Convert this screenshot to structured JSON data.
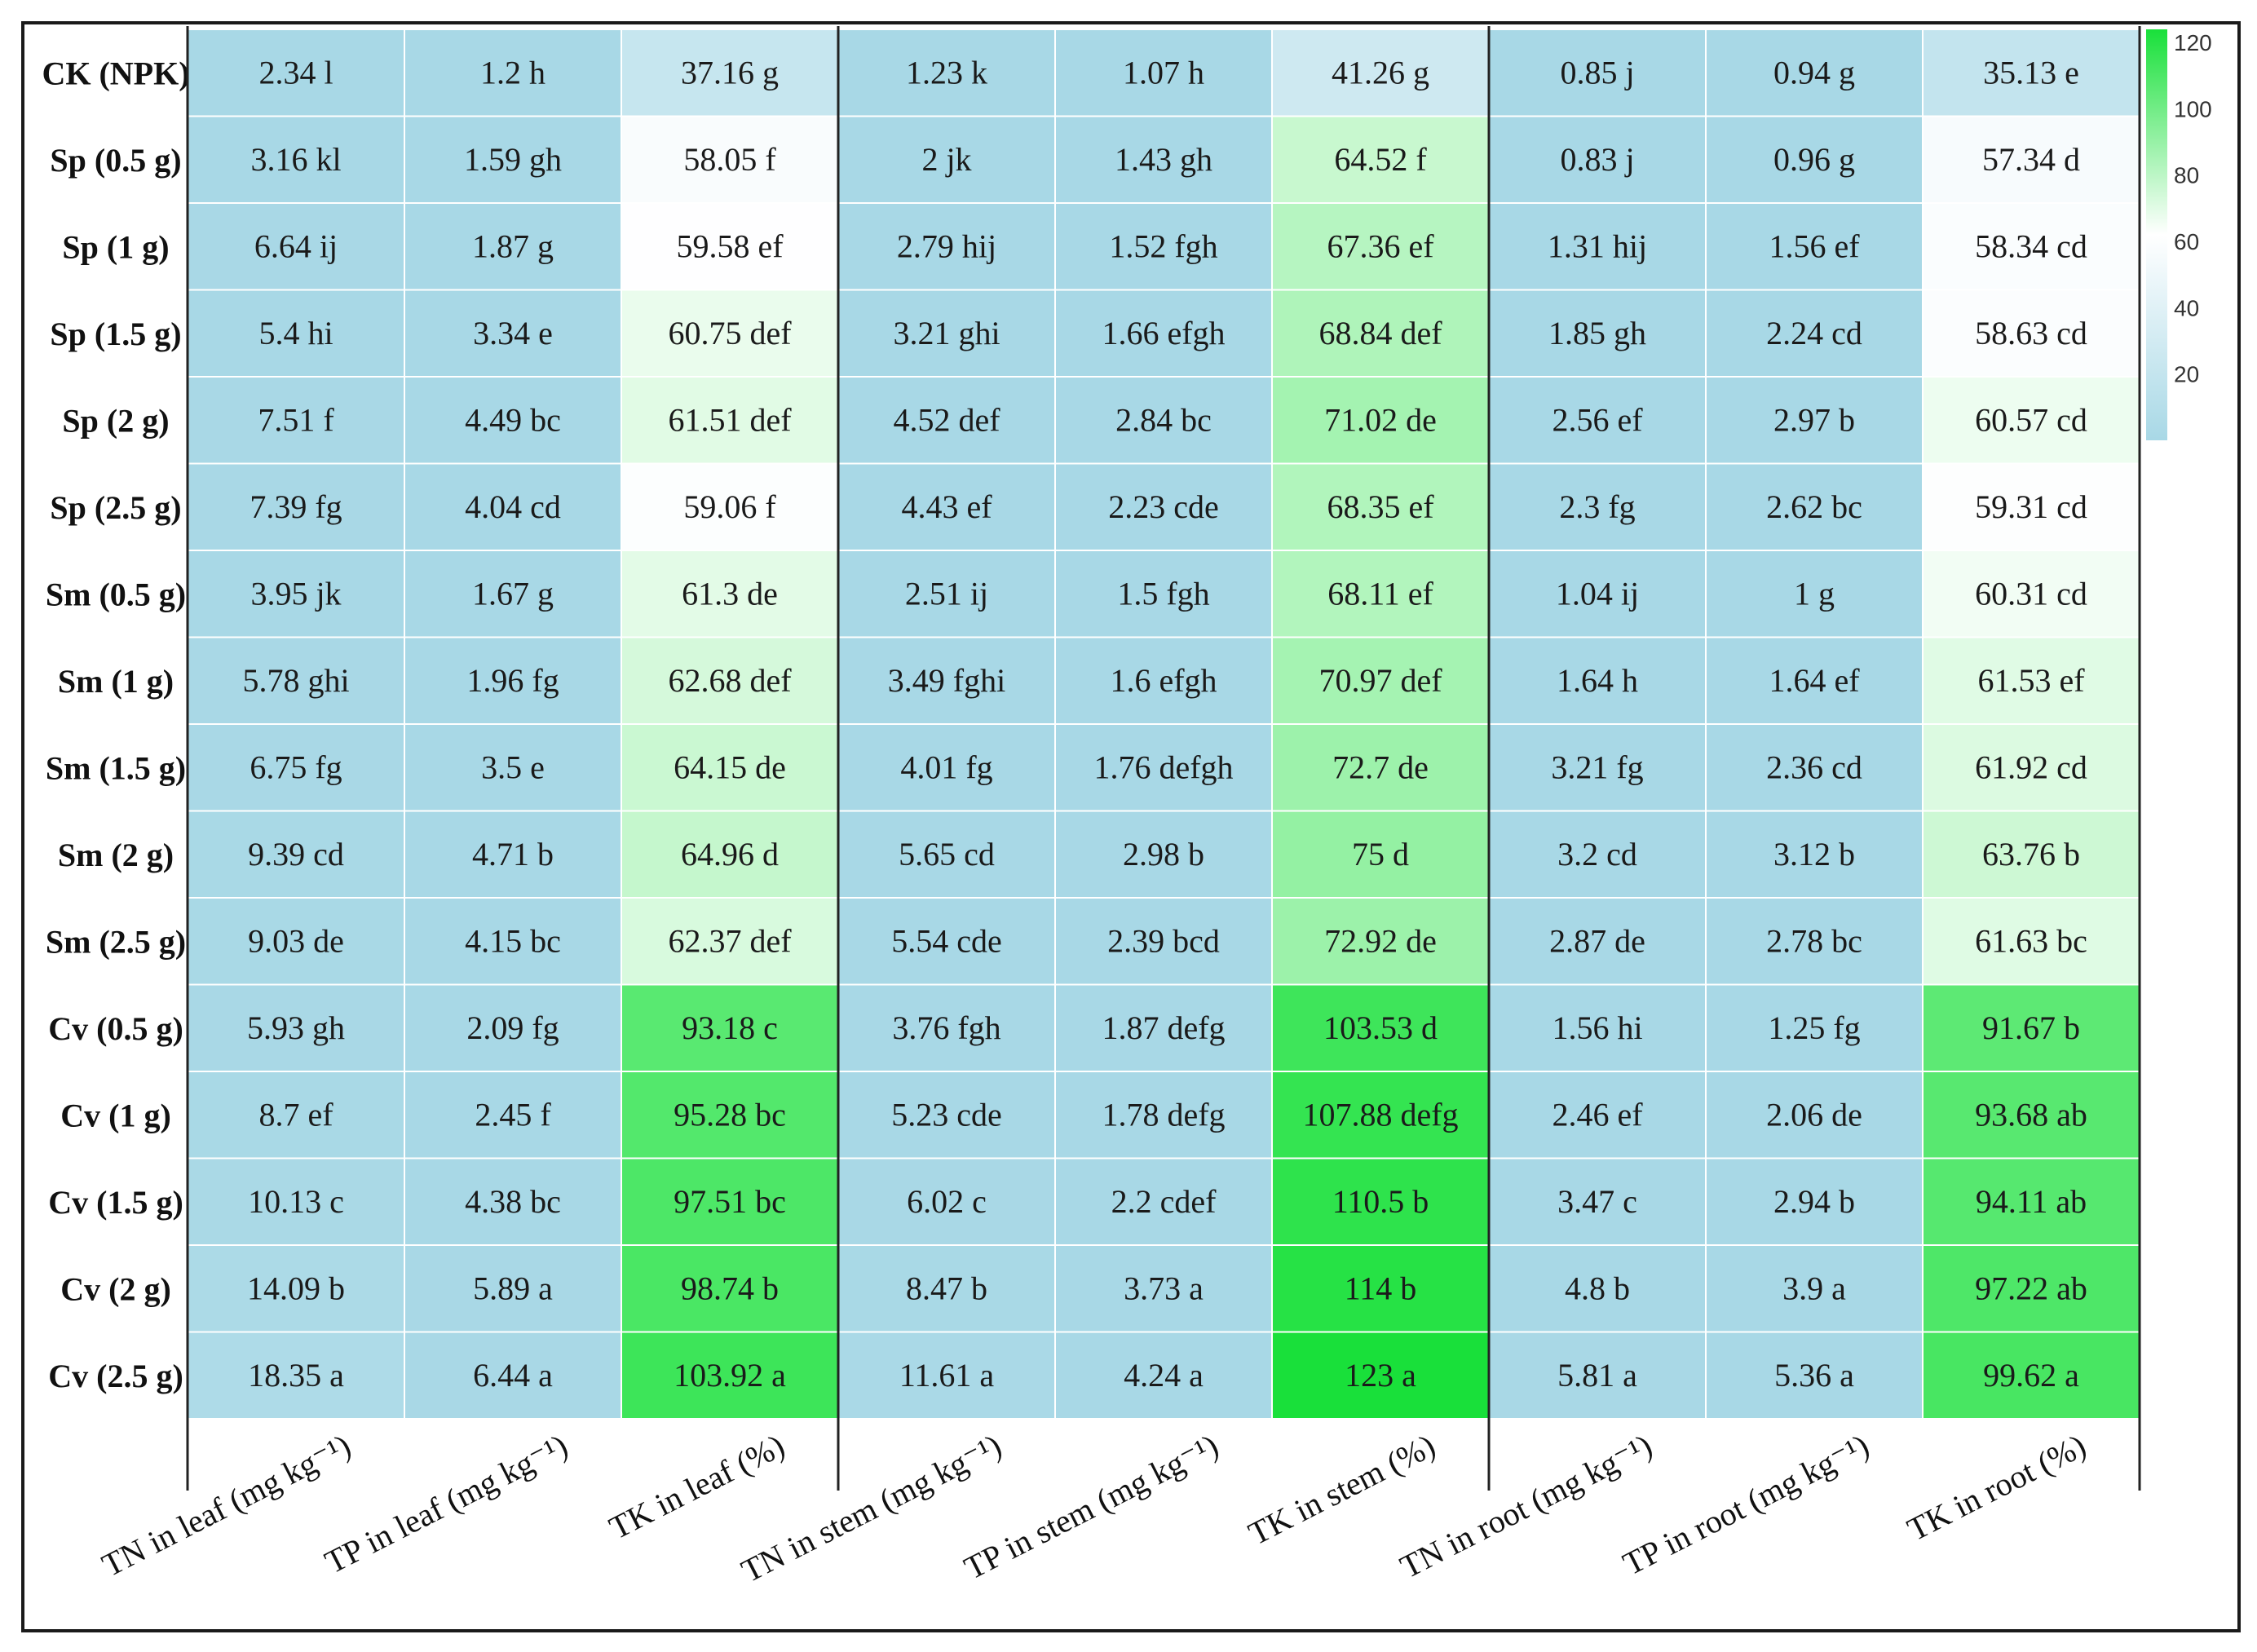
{
  "chart_data": {
    "type": "heatmap",
    "rows": [
      "CK (NPK)",
      "Sp (0.5 g)",
      "Sp (1 g)",
      "Sp (1.5 g)",
      "Sp (2 g)",
      "Sp (2.5 g)",
      "Sm (0.5 g)",
      "Sm (1 g)",
      "Sm (1.5 g)",
      "Sm (2 g)",
      "Sm (2.5 g)",
      "Cv (0.5 g)",
      "Cv (1 g)",
      "Cv (1.5 g)",
      "Cv (2 g)",
      "Cv (2.5 g)"
    ],
    "columns": [
      "TN in leaf (mg kg⁻¹)",
      "TP in leaf (mg kg⁻¹)",
      "TK in leaf (%)",
      "TN in stem (mg kg⁻¹)",
      "TP in stem (mg kg⁻¹)",
      "TK in stem (%)",
      "TN in root (mg kg⁻¹)",
      "TP in root (mg kg⁻¹)",
      "TK in root (%)"
    ],
    "values": [
      [
        2.34,
        1.2,
        37.16,
        1.23,
        1.07,
        41.26,
        0.85,
        0.94,
        35.13
      ],
      [
        3.16,
        1.59,
        58.05,
        2,
        1.43,
        64.52,
        0.83,
        0.96,
        57.34
      ],
      [
        6.64,
        1.87,
        59.58,
        2.79,
        1.52,
        67.36,
        1.31,
        1.56,
        58.34
      ],
      [
        5.4,
        3.34,
        60.75,
        3.21,
        1.66,
        68.84,
        1.85,
        2.24,
        58.63
      ],
      [
        7.51,
        4.49,
        61.51,
        4.52,
        2.84,
        71.02,
        2.56,
        2.97,
        60.57
      ],
      [
        7.39,
        4.04,
        59.06,
        4.43,
        2.23,
        68.35,
        2.3,
        2.62,
        59.31
      ],
      [
        3.95,
        1.67,
        61.3,
        2.51,
        1.5,
        68.11,
        1.04,
        1,
        60.31
      ],
      [
        5.78,
        1.96,
        62.68,
        3.49,
        1.6,
        70.97,
        1.64,
        1.64,
        61.53
      ],
      [
        6.75,
        3.5,
        64.15,
        4.01,
        1.76,
        72.7,
        3.21,
        2.36,
        61.92
      ],
      [
        9.39,
        4.71,
        64.96,
        5.65,
        2.98,
        75,
        3.2,
        3.12,
        63.76
      ],
      [
        9.03,
        4.15,
        62.37,
        5.54,
        2.39,
        72.92,
        2.87,
        2.78,
        61.63
      ],
      [
        5.93,
        2.09,
        93.18,
        3.76,
        1.87,
        103.53,
        1.56,
        1.25,
        91.67
      ],
      [
        8.7,
        2.45,
        95.28,
        5.23,
        1.78,
        107.88,
        2.46,
        2.06,
        93.68
      ],
      [
        10.13,
        4.38,
        97.51,
        6.02,
        2.2,
        110.5,
        3.47,
        2.94,
        94.11
      ],
      [
        14.09,
        5.89,
        98.74,
        8.47,
        3.73,
        114,
        4.8,
        3.9,
        97.22
      ],
      [
        18.35,
        6.44,
        103.92,
        11.61,
        4.24,
        123,
        5.81,
        5.36,
        99.62
      ]
    ],
    "labels": [
      [
        "2.34 l",
        "1.2 h",
        "37.16 g",
        "1.23 k",
        "1.07 h",
        "41.26 g",
        "0.85 j",
        "0.94 g",
        "35.13 e"
      ],
      [
        "3.16 kl",
        "1.59 gh",
        "58.05 f",
        "2 jk",
        "1.43 gh",
        "64.52 f",
        "0.83 j",
        "0.96 g",
        "57.34 d"
      ],
      [
        "6.64 ij",
        "1.87 g",
        "59.58 ef",
        "2.79 hij",
        "1.52 fgh",
        "67.36 ef",
        "1.31 hij",
        "1.56 ef",
        "58.34 cd"
      ],
      [
        "5.4 hi",
        "3.34 e",
        "60.75 def",
        "3.21 ghi",
        "1.66 efgh",
        "68.84 def",
        "1.85 gh",
        "2.24 cd",
        "58.63 cd"
      ],
      [
        "7.51 f",
        "4.49 bc",
        "61.51 def",
        "4.52 def",
        "2.84 bc",
        "71.02 de",
        "2.56 ef",
        "2.97 b",
        "60.57 cd"
      ],
      [
        "7.39 fg",
        "4.04 cd",
        "59.06 f",
        "4.43 ef",
        "2.23 cde",
        "68.35 ef",
        "2.3 fg",
        "2.62 bc",
        "59.31 cd"
      ],
      [
        "3.95 jk",
        "1.67 g",
        "61.3 de",
        "2.51 ij",
        "1.5 fgh",
        "68.11 ef",
        "1.04 ij",
        "1 g",
        "60.31 cd"
      ],
      [
        "5.78 ghi",
        "1.96 fg",
        "62.68 def",
        "3.49 fghi",
        "1.6 efgh",
        "70.97 def",
        "1.64 h",
        "1.64 ef",
        "61.53 ef"
      ],
      [
        "6.75 fg",
        "3.5 e",
        "64.15 de",
        "4.01 fg",
        "1.76 defgh",
        "72.7 de",
        "3.21 fg",
        "2.36 cd",
        "61.92 cd"
      ],
      [
        "9.39 cd",
        "4.71 b",
        "64.96 d",
        "5.65 cd",
        "2.98 b",
        "75 d",
        "3.2 cd",
        "3.12 b",
        "63.76 b"
      ],
      [
        "9.03 de",
        "4.15 bc",
        "62.37 def",
        "5.54 cde",
        "2.39 bcd",
        "72.92 de",
        "2.87 de",
        "2.78 bc",
        "61.63 bc"
      ],
      [
        "5.93 gh",
        "2.09 fg",
        "93.18 c",
        "3.76 fgh",
        "1.87 defg",
        "103.53 d",
        "1.56 hi",
        "1.25 fg",
        "91.67 b"
      ],
      [
        "8.7 ef",
        "2.45 f",
        "95.28 bc",
        "5.23 cde",
        "1.78 defg",
        "107.88 defg",
        "2.46 ef",
        "2.06 de",
        "93.68 ab"
      ],
      [
        "10.13 c",
        "4.38 bc",
        "97.51 bc",
        "6.02 c",
        "2.2 cdef",
        "110.5 b",
        "3.47 c",
        "2.94 b",
        "94.11 ab"
      ],
      [
        "14.09 b",
        "5.89 a",
        "98.74 b",
        "8.47 b",
        "3.73 a",
        "114 b",
        "4.8 b",
        "3.9 a",
        "97.22 ab"
      ],
      [
        "18.35 a",
        "6.44 a",
        "103.92 a",
        "11.61 a",
        "4.24 a",
        "123 a",
        "5.81 a",
        "5.36 a",
        "99.62 a"
      ]
    ],
    "colorscale": {
      "range": [
        0,
        120
      ],
      "ticks": [
        20,
        40,
        60,
        80,
        100,
        120
      ],
      "stops": [
        "#a8d8e6",
        "#ffffff",
        "#19e03a"
      ]
    },
    "legend": "right"
  }
}
